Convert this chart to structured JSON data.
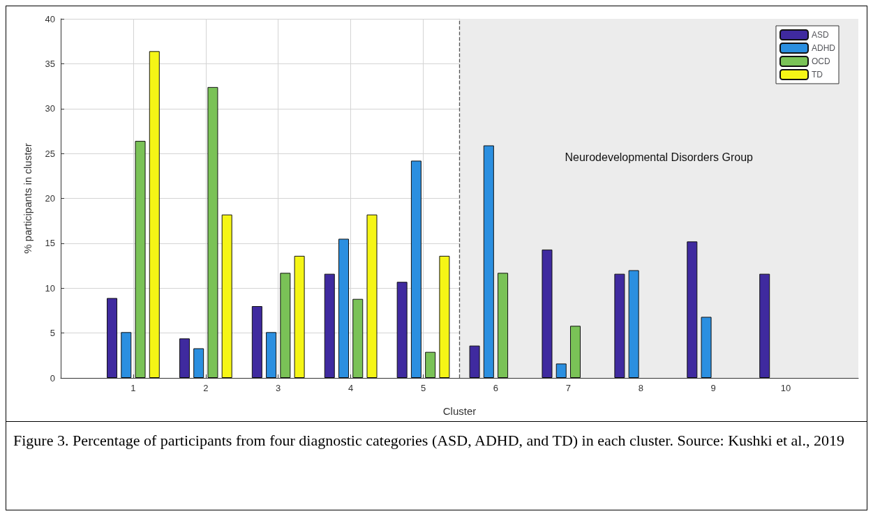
{
  "chart_data": {
    "type": "bar",
    "xlabel": "Cluster",
    "ylabel": "% participants in cluster",
    "x": [
      1,
      2,
      3,
      4,
      5,
      6,
      7,
      8,
      9,
      10
    ],
    "xlim": [
      0,
      11
    ],
    "xticks": [
      1,
      2,
      3,
      4,
      5,
      6,
      7,
      8,
      9,
      10
    ],
    "ylim": [
      0,
      40
    ],
    "yticks": [
      0,
      5,
      10,
      15,
      20,
      25,
      30,
      35,
      40
    ],
    "series": [
      {
        "name": "ASD",
        "color": "#3f2a9f",
        "values": [
          8.9,
          4.4,
          8.0,
          11.6,
          10.7,
          3.6,
          14.3,
          11.6,
          15.2,
          11.6
        ]
      },
      {
        "name": "ADHD",
        "color": "#2b8fe0",
        "values": [
          5.1,
          3.3,
          5.1,
          15.5,
          24.2,
          25.9,
          1.6,
          12.0,
          6.8,
          null
        ]
      },
      {
        "name": "OCD",
        "color": "#7ac257",
        "values": [
          26.4,
          32.4,
          11.7,
          8.8,
          2.9,
          11.7,
          5.8,
          null,
          null,
          null
        ]
      },
      {
        "name": "TD",
        "color": "#f5f516",
        "values": [
          36.4,
          18.2,
          13.6,
          18.2,
          13.6,
          null,
          null,
          null,
          null,
          null
        ]
      }
    ],
    "bands": [
      {
        "axis": "x",
        "from": 5.5,
        "to": 11,
        "label": "Neurodevelopmental Disorders Group",
        "color": "#ececec"
      }
    ],
    "ref_lines": [
      {
        "axis": "x",
        "value": 5.5,
        "label": null,
        "color": "#555555",
        "line_style": "dashed"
      }
    ],
    "grid": true,
    "legend": "top right",
    "annotations": [
      "Figure 3. Percentage of participants from four diagnostic categories (ASD, ADHD, and TD) in each cluster. Source: Kushki et al., 2019"
    ]
  }
}
